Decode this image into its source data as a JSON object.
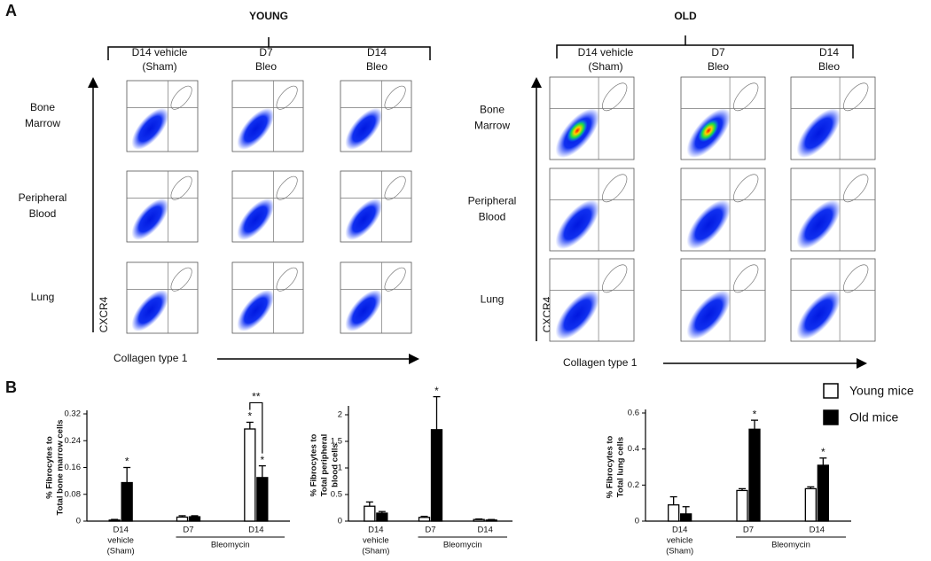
{
  "panel_a": {
    "label": "A",
    "young": {
      "title": "YOUNG",
      "columns": [
        [
          "D14 vehicle",
          "(Sham)"
        ],
        [
          "D7",
          "Bleo"
        ],
        [
          "D14",
          "Bleo"
        ]
      ]
    },
    "old": {
      "title": "OLD",
      "columns": [
        [
          "D14 vehicle",
          "(Sham)"
        ],
        [
          "D7",
          "Bleo"
        ],
        [
          "D14",
          "Bleo"
        ]
      ]
    },
    "rows": [
      [
        "Bone",
        "Marrow"
      ],
      [
        "Peripheral",
        "Blood"
      ],
      [
        "Lung"
      ]
    ],
    "y_axis_label": "CXCR4",
    "x_axis_label": "Collagen type 1"
  },
  "panel_b": {
    "label": "B"
  },
  "chart_data": [
    {
      "type": "bar",
      "ylabel": [
        "% Fibrocytes to",
        "Total bone marrow cells"
      ],
      "categories": [
        [
          "D14",
          "vehicle",
          "(Sham)"
        ],
        [
          "D7"
        ],
        [
          "D14"
        ]
      ],
      "group_label": "Bleomycin",
      "ylim": [
        0,
        0.32
      ],
      "yticks": [
        0,
        0.08,
        0.16,
        0.24,
        0.32
      ],
      "bracket_label": "**",
      "series": [
        {
          "name": "Young mice",
          "color": "#ffffff",
          "values": [
            0.003,
            0.012,
            0.275
          ],
          "errors": [
            0.002,
            0.004,
            0.02
          ],
          "significance": [
            null,
            null,
            "*"
          ]
        },
        {
          "name": "Old mice",
          "color": "#000000",
          "values": [
            0.115,
            0.013,
            0.13
          ],
          "errors": [
            0.045,
            0.003,
            0.035
          ],
          "significance": [
            "*",
            null,
            "*"
          ]
        }
      ]
    },
    {
      "type": "bar",
      "ylabel": [
        "% Fibrocytes to",
        "Total peripheral",
        "blood cells"
      ],
      "categories": [
        [
          "D14",
          "vehicle",
          "(Sham)"
        ],
        [
          "D7"
        ],
        [
          "D14"
        ]
      ],
      "group_label": "Bleomycin",
      "ylim": [
        0,
        2.1
      ],
      "yticks": [
        0,
        0.5,
        1,
        1.5,
        2
      ],
      "series": [
        {
          "color": "#ffffff",
          "values": [
            0.28,
            0.07,
            0.03
          ],
          "errors": [
            0.08,
            0.02,
            0.01
          ],
          "significance": [
            null,
            null,
            null
          ]
        },
        {
          "color": "#000000",
          "values": [
            0.15,
            1.72,
            0.02
          ],
          "errors": [
            0.03,
            0.62,
            0.01
          ],
          "significance": [
            null,
            "*",
            null
          ]
        }
      ]
    },
    {
      "type": "bar",
      "ylabel": [
        "% Fibrocytes to",
        "Total lung cells"
      ],
      "categories": [
        [
          "D14",
          "vehicle",
          "(Sham)"
        ],
        [
          "D7"
        ],
        [
          "D14"
        ]
      ],
      "group_label": "Bleomycin",
      "ylim": [
        0,
        0.6
      ],
      "yticks": [
        0,
        0.2,
        0.4,
        0.6
      ],
      "series": [
        {
          "color": "#ffffff",
          "values": [
            0.09,
            0.17,
            0.18
          ],
          "errors": [
            0.045,
            0.01,
            0.01
          ],
          "significance": [
            null,
            null,
            null
          ]
        },
        {
          "color": "#000000",
          "values": [
            0.04,
            0.51,
            0.31
          ],
          "errors": [
            0.04,
            0.05,
            0.04
          ],
          "significance": [
            null,
            "*",
            "*"
          ]
        }
      ]
    }
  ]
}
